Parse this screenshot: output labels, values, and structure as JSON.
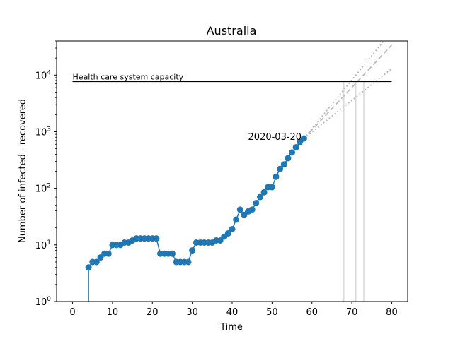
{
  "chart_data": {
    "type": "line",
    "title": "Australia",
    "xlabel": "Time",
    "ylabel": "Number of infected - recovered",
    "xlim": [
      -4,
      84
    ],
    "ylim": [
      1,
      40000
    ],
    "yscale": "log",
    "grid": false,
    "x_ticks": [
      0,
      10,
      20,
      30,
      40,
      50,
      60,
      70,
      80
    ],
    "y_ticks": [
      {
        "value": 1,
        "base": "10",
        "exp": "0"
      },
      {
        "value": 10,
        "base": "10",
        "exp": "1"
      },
      {
        "value": 100,
        "base": "10",
        "exp": "2"
      },
      {
        "value": 1000,
        "base": "10",
        "exp": "3"
      },
      {
        "value": 10000,
        "base": "10",
        "exp": "4"
      }
    ],
    "series": [
      {
        "color": "#1f77b4",
        "x": [
          4,
          5,
          6,
          7,
          8,
          9,
          10,
          11,
          12,
          13,
          14,
          15,
          16,
          17,
          18,
          19,
          20,
          21,
          22,
          23,
          24,
          25,
          26,
          27,
          28,
          29,
          30,
          31,
          32,
          33,
          34,
          35,
          36,
          37,
          38,
          39,
          40,
          41,
          42,
          43,
          44,
          45,
          46,
          47,
          48,
          49,
          50,
          51,
          52,
          53,
          54,
          55,
          56,
          57,
          58
        ],
        "y": [
          4,
          5,
          5,
          6,
          7,
          7,
          10,
          10,
          10,
          11,
          11,
          12,
          13,
          13,
          13,
          13,
          13,
          13,
          7,
          7,
          7,
          7,
          5,
          5,
          5,
          5,
          8,
          11,
          11,
          11,
          11,
          11,
          12,
          12,
          14,
          16,
          19,
          28,
          42,
          34,
          39,
          42,
          55,
          70,
          85,
          105,
          105,
          160,
          220,
          265,
          340,
          430,
          530,
          660,
          760
        ]
      }
    ],
    "capacity": {
      "value": 7700,
      "x_start": 0,
      "x_end": 80,
      "label": "Health care system capacity"
    },
    "projections": {
      "color": "#bbbbbb",
      "start": [
        58,
        760
      ],
      "dashed_end": [
        80,
        34000
      ],
      "dotted_upper_end": [
        78,
        40000
      ],
      "dotted_lower_end": [
        80,
        13000
      ]
    },
    "crossing_lines_x": [
      68,
      71,
      73
    ],
    "annotation": {
      "text": "2020-03-20",
      "x": 44,
      "y": 800
    }
  }
}
